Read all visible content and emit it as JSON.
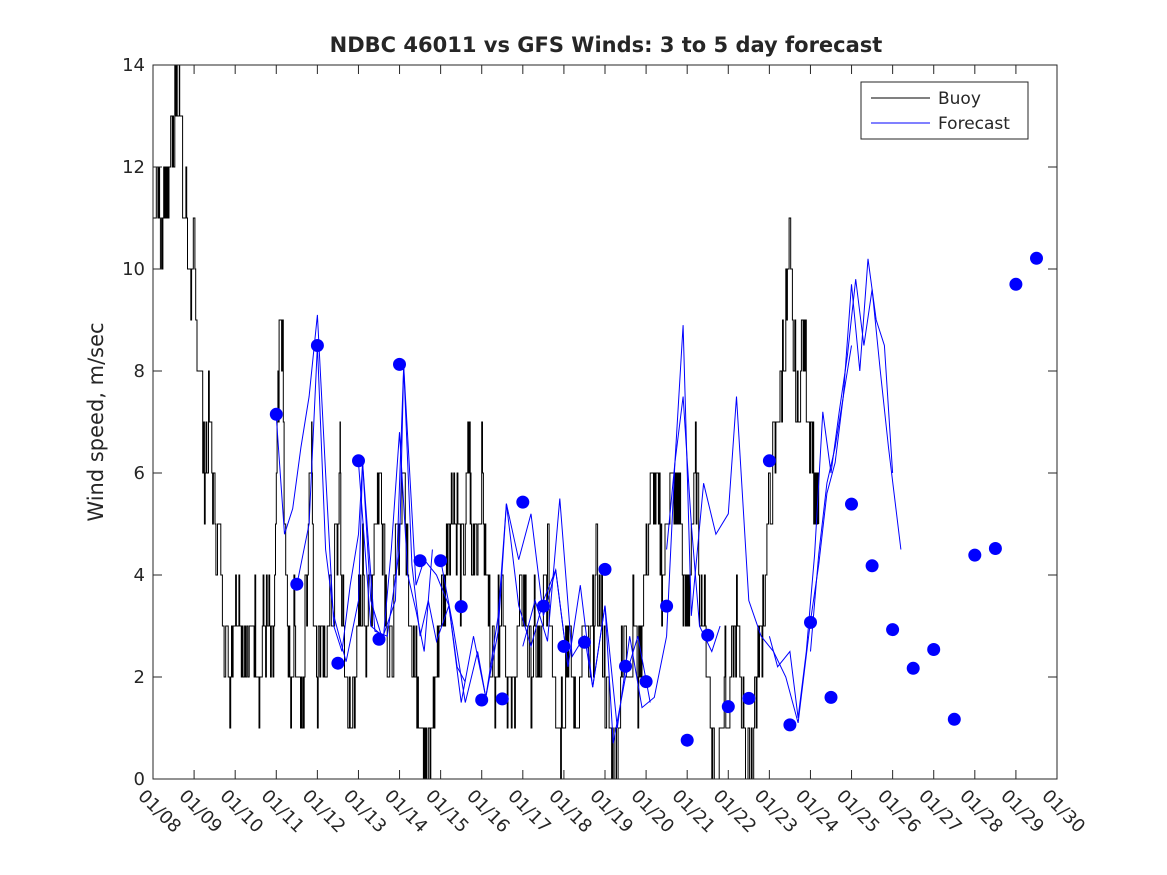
{
  "chart_data": {
    "type": "line",
    "title": "NDBC 46011 vs GFS Winds: 3 to 5 day forecast",
    "xlabel": "",
    "ylabel": "Wind speed, m/sec",
    "xlim": [
      0,
      22
    ],
    "ylim": [
      0,
      14
    ],
    "yticks": [
      0,
      2,
      4,
      6,
      8,
      10,
      12,
      14
    ],
    "x_tick_labels": [
      "01/08",
      "01/09",
      "01/10",
      "01/11",
      "01/12",
      "01/13",
      "01/14",
      "01/15",
      "01/16",
      "01/17",
      "01/18",
      "01/19",
      "01/20",
      "01/21",
      "01/22",
      "01/23",
      "01/24",
      "01/25",
      "01/26",
      "01/27",
      "01/28",
      "01/29",
      "01/30"
    ],
    "legend": {
      "placement": "top-right",
      "entries": [
        "Buoy",
        "Forecast"
      ]
    },
    "colors": {
      "buoy": "#000000",
      "forecast": "#0000ff",
      "axis": "#262626"
    },
    "buoy_keypoints": [
      [
        0.0,
        11
      ],
      [
        0.1,
        12
      ],
      [
        0.2,
        10
      ],
      [
        0.25,
        11
      ],
      [
        0.3,
        12
      ],
      [
        0.35,
        11
      ],
      [
        0.4,
        12
      ],
      [
        0.45,
        13
      ],
      [
        0.5,
        12
      ],
      [
        0.55,
        14
      ],
      [
        0.6,
        13
      ],
      [
        0.65,
        14
      ],
      [
        0.7,
        12
      ],
      [
        0.8,
        11
      ],
      [
        0.9,
        10
      ],
      [
        1.0,
        10
      ],
      [
        1.05,
        9
      ],
      [
        1.15,
        8
      ],
      [
        1.25,
        6
      ],
      [
        1.35,
        7
      ],
      [
        1.45,
        6
      ],
      [
        1.55,
        5
      ],
      [
        1.65,
        4
      ],
      [
        1.75,
        3
      ],
      [
        1.85,
        2
      ],
      [
        1.95,
        3
      ],
      [
        2.05,
        4
      ],
      [
        2.15,
        3
      ],
      [
        2.25,
        2
      ],
      [
        2.4,
        3
      ],
      [
        2.5,
        3
      ],
      [
        2.6,
        2
      ],
      [
        2.7,
        3
      ],
      [
        2.8,
        3
      ],
      [
        2.9,
        2
      ],
      [
        3.0,
        5
      ],
      [
        3.05,
        8
      ],
      [
        3.1,
        9
      ],
      [
        3.15,
        8
      ],
      [
        3.25,
        3
      ],
      [
        3.35,
        2
      ],
      [
        3.45,
        3
      ],
      [
        3.55,
        2
      ],
      [
        3.65,
        1
      ],
      [
        3.7,
        3
      ],
      [
        3.8,
        6
      ],
      [
        3.85,
        7
      ],
      [
        3.9,
        4
      ],
      [
        4.0,
        2
      ],
      [
        4.1,
        3
      ],
      [
        4.2,
        2
      ],
      [
        4.3,
        3
      ],
      [
        4.4,
        4
      ],
      [
        4.5,
        5
      ],
      [
        4.55,
        6
      ],
      [
        4.6,
        3
      ],
      [
        4.7,
        2
      ],
      [
        4.8,
        1
      ],
      [
        4.9,
        2
      ],
      [
        5.0,
        3
      ],
      [
        5.1,
        4
      ],
      [
        5.2,
        3
      ],
      [
        5.3,
        4
      ],
      [
        5.4,
        5
      ],
      [
        5.5,
        6
      ],
      [
        5.6,
        5
      ],
      [
        5.7,
        3
      ],
      [
        5.8,
        2
      ],
      [
        5.9,
        4
      ],
      [
        6.0,
        5
      ],
      [
        6.1,
        6
      ],
      [
        6.2,
        4
      ],
      [
        6.3,
        3
      ],
      [
        6.4,
        2
      ],
      [
        6.5,
        2
      ],
      [
        6.6,
        1
      ],
      [
        6.7,
        0
      ],
      [
        6.8,
        1
      ],
      [
        6.9,
        2
      ],
      [
        7.0,
        3
      ],
      [
        7.1,
        4
      ],
      [
        7.2,
        5
      ],
      [
        7.3,
        6
      ],
      [
        7.4,
        5
      ],
      [
        7.5,
        4
      ],
      [
        7.6,
        5
      ],
      [
        7.7,
        7
      ],
      [
        7.75,
        4
      ],
      [
        7.85,
        5
      ],
      [
        8.0,
        6
      ],
      [
        8.1,
        4
      ],
      [
        8.2,
        3
      ],
      [
        8.3,
        2
      ],
      [
        8.4,
        3
      ],
      [
        8.5,
        4
      ],
      [
        8.6,
        2
      ],
      [
        8.7,
        1
      ],
      [
        8.8,
        2
      ],
      [
        8.9,
        3
      ],
      [
        9.0,
        4
      ],
      [
        9.1,
        3
      ],
      [
        9.2,
        2
      ],
      [
        9.3,
        3
      ],
      [
        9.4,
        2
      ],
      [
        9.5,
        3
      ],
      [
        9.6,
        4
      ],
      [
        9.7,
        3
      ],
      [
        9.8,
        2
      ],
      [
        9.9,
        1
      ],
      [
        10.0,
        2
      ],
      [
        10.1,
        3
      ],
      [
        10.2,
        2
      ],
      [
        10.3,
        1
      ],
      [
        10.4,
        2
      ],
      [
        10.5,
        3
      ],
      [
        10.6,
        2
      ],
      [
        10.7,
        3
      ],
      [
        10.8,
        4
      ],
      [
        10.9,
        3
      ],
      [
        11.0,
        2
      ],
      [
        11.1,
        1
      ],
      [
        11.2,
        0
      ],
      [
        11.3,
        1
      ],
      [
        11.4,
        2
      ],
      [
        11.5,
        3
      ],
      [
        11.6,
        2
      ],
      [
        11.7,
        3
      ],
      [
        11.8,
        2
      ],
      [
        11.9,
        3
      ],
      [
        12.0,
        4
      ],
      [
        12.1,
        5
      ],
      [
        12.2,
        6
      ],
      [
        12.3,
        5
      ],
      [
        12.4,
        4
      ],
      [
        12.5,
        5
      ],
      [
        12.6,
        6
      ],
      [
        12.7,
        5
      ],
      [
        12.8,
        6
      ],
      [
        12.9,
        4
      ],
      [
        13.0,
        3
      ],
      [
        13.1,
        5
      ],
      [
        13.2,
        6
      ],
      [
        13.3,
        4
      ],
      [
        13.4,
        3
      ],
      [
        13.5,
        2
      ],
      [
        13.6,
        1
      ],
      [
        13.7,
        0
      ],
      [
        13.8,
        1
      ],
      [
        13.9,
        2
      ],
      [
        14.0,
        1
      ],
      [
        14.1,
        2
      ],
      [
        14.2,
        3
      ],
      [
        14.3,
        2
      ],
      [
        14.4,
        1
      ],
      [
        14.5,
        0
      ],
      [
        14.6,
        1
      ],
      [
        14.7,
        2
      ],
      [
        14.8,
        3
      ],
      [
        14.9,
        4
      ],
      [
        15.0,
        5
      ],
      [
        15.1,
        6
      ],
      [
        15.2,
        7
      ],
      [
        15.3,
        8
      ],
      [
        15.4,
        9
      ],
      [
        15.5,
        10
      ],
      [
        15.6,
        8
      ],
      [
        15.7,
        7
      ],
      [
        15.8,
        9
      ],
      [
        15.9,
        8
      ],
      [
        16.0,
        7
      ],
      [
        16.1,
        6
      ],
      [
        16.2,
        5
      ]
    ],
    "forecast_lines": [
      [
        [
          3.0,
          7.1
        ],
        [
          3.2,
          4.8
        ],
        [
          3.4,
          5.3
        ],
        [
          3.6,
          6.5
        ],
        [
          3.8,
          7.5
        ],
        [
          4.0,
          9.1
        ],
        [
          4.2,
          6.0
        ],
        [
          4.4,
          3.0
        ],
        [
          4.6,
          2.5
        ],
        [
          4.8,
          3.8
        ],
        [
          5.0,
          4.8
        ],
        [
          5.1,
          6.2
        ],
        [
          5.3,
          3.5
        ],
        [
          5.6,
          2.7
        ],
        [
          5.8,
          4.5
        ],
        [
          6.0,
          6.8
        ],
        [
          6.2,
          4.0
        ],
        [
          6.4,
          3.3
        ],
        [
          6.6,
          2.5
        ],
        [
          6.8,
          4.5
        ]
      ],
      [
        [
          3.5,
          3.8
        ],
        [
          3.8,
          5.0
        ],
        [
          4.0,
          8.5
        ],
        [
          4.2,
          4.5
        ],
        [
          4.4,
          3.2
        ],
        [
          4.7,
          2.3
        ],
        [
          5.0,
          3.5
        ],
        [
          5.1,
          6.2
        ],
        [
          5.4,
          2.9
        ],
        [
          5.7,
          2.8
        ],
        [
          6.0,
          4.5
        ],
        [
          6.1,
          8.1
        ],
        [
          6.3,
          4.2
        ],
        [
          6.5,
          2.8
        ],
        [
          6.7,
          3.5
        ],
        [
          6.9,
          2.7
        ],
        [
          7.2,
          3.4
        ],
        [
          7.4,
          2.2
        ],
        [
          7.6,
          1.9
        ]
      ],
      [
        [
          5.0,
          6.2
        ],
        [
          5.3,
          3.0
        ],
        [
          5.6,
          2.8
        ],
        [
          5.9,
          3.5
        ],
        [
          6.1,
          8.1
        ],
        [
          6.4,
          3.8
        ],
        [
          6.6,
          4.3
        ],
        [
          6.9,
          4.0
        ],
        [
          7.2,
          3.4
        ],
        [
          7.5,
          1.5
        ],
        [
          7.8,
          2.8
        ],
        [
          8.1,
          1.6
        ],
        [
          8.4,
          2.9
        ],
        [
          8.6,
          5.4
        ],
        [
          8.9,
          3.4
        ],
        [
          9.2,
          2.6
        ],
        [
          9.5,
          3.5
        ],
        [
          9.8,
          4.1
        ],
        [
          10.1,
          2.2
        ]
      ],
      [
        [
          7.0,
          4.3
        ],
        [
          7.3,
          3.0
        ],
        [
          7.6,
          1.5
        ],
        [
          7.9,
          2.5
        ],
        [
          8.1,
          1.6
        ],
        [
          8.4,
          3.2
        ],
        [
          8.6,
          5.4
        ],
        [
          8.9,
          4.3
        ],
        [
          9.2,
          5.2
        ],
        [
          9.5,
          3.2
        ],
        [
          9.8,
          4.1
        ],
        [
          10.1,
          2.2
        ],
        [
          10.4,
          3.8
        ],
        [
          10.7,
          1.8
        ],
        [
          11.0,
          3.4
        ],
        [
          11.2,
          0.7
        ],
        [
          11.5,
          2.0
        ],
        [
          11.8,
          2.8
        ],
        [
          12.1,
          1.5
        ]
      ],
      [
        [
          9.0,
          2.6
        ],
        [
          9.3,
          3.5
        ],
        [
          9.6,
          2.7
        ],
        [
          9.9,
          5.5
        ],
        [
          10.2,
          2.4
        ],
        [
          10.5,
          2.8
        ],
        [
          10.7,
          1.8
        ],
        [
          11.0,
          3.4
        ],
        [
          11.3,
          1.0
        ],
        [
          11.6,
          2.8
        ],
        [
          11.9,
          1.4
        ],
        [
          12.2,
          1.6
        ],
        [
          12.5,
          2.8
        ],
        [
          12.7,
          6.2
        ],
        [
          12.9,
          7.5
        ],
        [
          13.1,
          5.0
        ],
        [
          13.3,
          3.0
        ],
        [
          13.6,
          2.5
        ],
        [
          13.8,
          3.0
        ]
      ],
      [
        [
          12.5,
          4.5
        ],
        [
          12.7,
          6.2
        ],
        [
          12.9,
          8.9
        ],
        [
          13.1,
          3.2
        ],
        [
          13.4,
          5.8
        ],
        [
          13.7,
          4.8
        ],
        [
          14.0,
          5.2
        ],
        [
          14.2,
          7.5
        ],
        [
          14.5,
          3.5
        ],
        [
          14.8,
          2.8
        ],
        [
          15.1,
          2.5
        ],
        [
          15.4,
          2.0
        ],
        [
          15.7,
          1.1
        ],
        [
          16.0,
          3.1
        ],
        [
          16.2,
          4.2
        ],
        [
          16.4,
          5.6
        ],
        [
          16.6,
          6.2
        ],
        [
          16.8,
          7.5
        ],
        [
          17.0,
          8.5
        ]
      ],
      [
        [
          15.0,
          2.8
        ],
        [
          15.2,
          2.2
        ],
        [
          15.5,
          2.5
        ],
        [
          15.7,
          1.2
        ],
        [
          15.9,
          2.5
        ],
        [
          16.1,
          4.4
        ],
        [
          16.3,
          7.2
        ],
        [
          16.5,
          6.0
        ],
        [
          16.7,
          7.2
        ],
        [
          16.9,
          8.3
        ],
        [
          17.1,
          9.8
        ],
        [
          17.3,
          8.5
        ],
        [
          17.5,
          9.6
        ],
        [
          17.7,
          8.0
        ],
        [
          17.9,
          6.5
        ],
        [
          18.2,
          4.5
        ]
      ],
      [
        [
          16.0,
          2.5
        ],
        [
          16.2,
          4.4
        ],
        [
          16.4,
          5.8
        ],
        [
          16.6,
          6.5
        ],
        [
          16.8,
          7.5
        ],
        [
          17.0,
          9.7
        ],
        [
          17.2,
          8.0
        ],
        [
          17.4,
          10.2
        ],
        [
          17.6,
          9.0
        ],
        [
          17.8,
          8.5
        ],
        [
          18.0,
          6.0
        ]
      ]
    ],
    "forecast_markers": [
      [
        3.0,
        7.15
      ],
      [
        3.5,
        3.82
      ],
      [
        4.0,
        8.5
      ],
      [
        4.5,
        2.27
      ],
      [
        5.0,
        6.24
      ],
      [
        5.5,
        2.74
      ],
      [
        6.0,
        8.13
      ],
      [
        6.5,
        4.28
      ],
      [
        7.0,
        4.28
      ],
      [
        7.5,
        3.38
      ],
      [
        8.0,
        1.55
      ],
      [
        8.5,
        1.57
      ],
      [
        9.0,
        5.43
      ],
      [
        9.5,
        3.39
      ],
      [
        10.0,
        2.6
      ],
      [
        10.5,
        2.68
      ],
      [
        11.0,
        4.11
      ],
      [
        11.5,
        2.21
      ],
      [
        12.0,
        1.91
      ],
      [
        12.5,
        3.39
      ],
      [
        13.0,
        0.76
      ],
      [
        13.5,
        2.82
      ],
      [
        14.0,
        1.42
      ],
      [
        14.5,
        1.58
      ],
      [
        15.0,
        6.24
      ],
      [
        15.5,
        1.06
      ],
      [
        16.0,
        3.07
      ],
      [
        16.5,
        1.6
      ],
      [
        17.0,
        5.39
      ],
      [
        17.5,
        4.18
      ],
      [
        18.0,
        2.93
      ],
      [
        18.5,
        2.17
      ],
      [
        19.0,
        2.54
      ],
      [
        19.5,
        1.17
      ],
      [
        20.0,
        4.39
      ],
      [
        20.5,
        4.52
      ],
      [
        21.0,
        9.7
      ],
      [
        21.5,
        10.21
      ]
    ]
  }
}
